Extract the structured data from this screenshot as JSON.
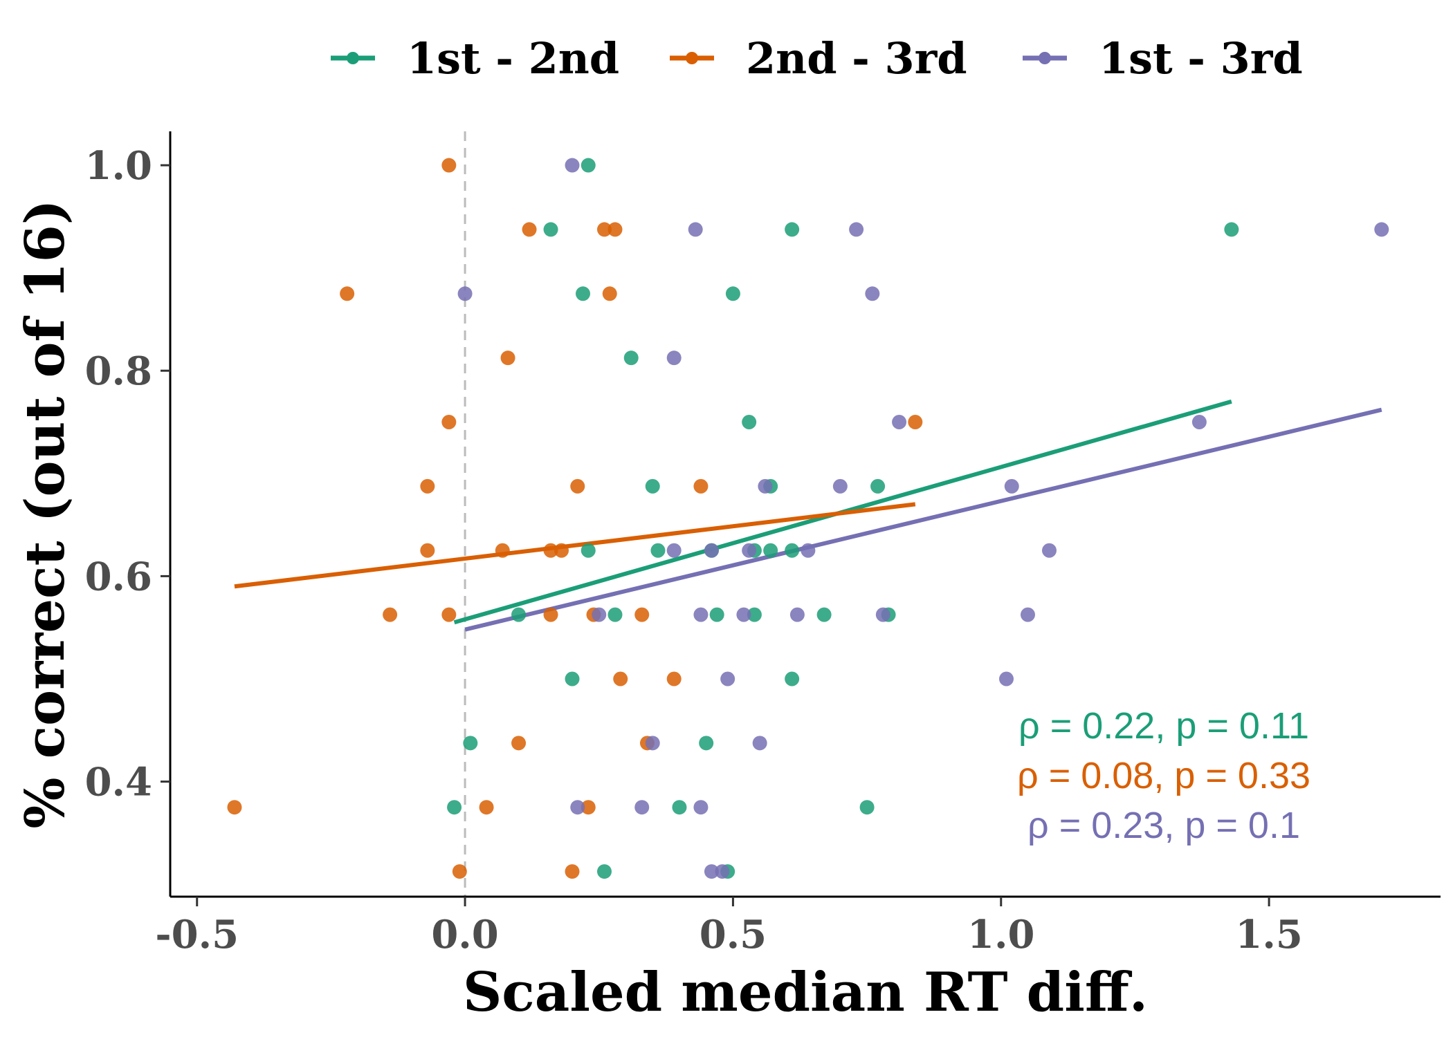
{
  "chart_data": {
    "type": "scatter",
    "xlabel": "Scaled median RT diff.",
    "ylabel": "% correct (out of 16)",
    "xlim": [
      -0.55,
      1.82
    ],
    "ylim": [
      0.288,
      1.033
    ],
    "x_ticks": [
      -0.5,
      0.0,
      0.5,
      1.0,
      1.5
    ],
    "x_tick_labels": [
      "-0.5",
      "0.0",
      "0.5",
      "1.0",
      "1.5"
    ],
    "y_ticks": [
      0.4,
      0.6,
      0.8,
      1.0
    ],
    "y_tick_labels": [
      "0.4",
      "0.6",
      "0.8",
      "1.0"
    ],
    "reference_line": {
      "x": 0,
      "style": "dashed",
      "color": "#bbbbbb"
    },
    "grid": false,
    "legend_position": "top",
    "series": [
      {
        "name": "1st - 2nd",
        "color": "#1b9e77",
        "points": [
          [
            0.23,
            1.0
          ],
          [
            0.16,
            0.9375
          ],
          [
            0.61,
            0.9375
          ],
          [
            1.43,
            0.9375
          ],
          [
            0.22,
            0.875
          ],
          [
            0.5,
            0.875
          ],
          [
            0.31,
            0.8125
          ],
          [
            0.53,
            0.75
          ],
          [
            0.35,
            0.6875
          ],
          [
            0.57,
            0.6875
          ],
          [
            0.77,
            0.6875
          ],
          [
            0.23,
            0.625
          ],
          [
            0.36,
            0.625
          ],
          [
            0.46,
            0.625
          ],
          [
            0.54,
            0.625
          ],
          [
            0.57,
            0.625
          ],
          [
            0.61,
            0.625
          ],
          [
            0.1,
            0.5625
          ],
          [
            0.28,
            0.5625
          ],
          [
            0.47,
            0.5625
          ],
          [
            0.54,
            0.5625
          ],
          [
            0.67,
            0.5625
          ],
          [
            0.79,
            0.5625
          ],
          [
            0.2,
            0.5
          ],
          [
            0.61,
            0.5
          ],
          [
            0.01,
            0.4375
          ],
          [
            0.45,
            0.4375
          ],
          [
            -0.02,
            0.375
          ],
          [
            0.4,
            0.375
          ],
          [
            0.75,
            0.375
          ],
          [
            0.26,
            0.3125
          ],
          [
            0.49,
            0.3125
          ]
        ],
        "fit": {
          "x": [
            -0.02,
            1.43
          ],
          "y": [
            0.555,
            0.77
          ]
        },
        "stat": "ρ = 0.22, p = 0.11"
      },
      {
        "name": "2nd - 3rd",
        "color": "#d95f02",
        "points": [
          [
            -0.03,
            1.0
          ],
          [
            0.12,
            0.9375
          ],
          [
            0.26,
            0.9375
          ],
          [
            0.28,
            0.9375
          ],
          [
            -0.22,
            0.875
          ],
          [
            0.27,
            0.875
          ],
          [
            0.08,
            0.8125
          ],
          [
            -0.03,
            0.75
          ],
          [
            0.84,
            0.75
          ],
          [
            -0.07,
            0.6875
          ],
          [
            0.21,
            0.6875
          ],
          [
            0.44,
            0.6875
          ],
          [
            -0.07,
            0.625
          ],
          [
            0.07,
            0.625
          ],
          [
            0.16,
            0.625
          ],
          [
            0.18,
            0.625
          ],
          [
            -0.14,
            0.5625
          ],
          [
            -0.03,
            0.5625
          ],
          [
            0.16,
            0.5625
          ],
          [
            0.24,
            0.5625
          ],
          [
            0.33,
            0.5625
          ],
          [
            0.29,
            0.5
          ],
          [
            0.39,
            0.5
          ],
          [
            0.1,
            0.4375
          ],
          [
            0.34,
            0.4375
          ],
          [
            -0.43,
            0.375
          ],
          [
            0.04,
            0.375
          ],
          [
            0.23,
            0.375
          ],
          [
            -0.01,
            0.3125
          ],
          [
            0.2,
            0.3125
          ]
        ],
        "fit": {
          "x": [
            -0.43,
            0.84
          ],
          "y": [
            0.59,
            0.67
          ]
        },
        "stat": "ρ = 0.08, p = 0.33"
      },
      {
        "name": "1st - 3rd",
        "color": "#7570b3",
        "points": [
          [
            0.2,
            1.0
          ],
          [
            0.43,
            0.9375
          ],
          [
            0.73,
            0.9375
          ],
          [
            1.71,
            0.9375
          ],
          [
            0.0,
            0.875
          ],
          [
            0.76,
            0.875
          ],
          [
            0.39,
            0.8125
          ],
          [
            0.81,
            0.75
          ],
          [
            1.37,
            0.75
          ],
          [
            0.56,
            0.6875
          ],
          [
            0.7,
            0.6875
          ],
          [
            1.02,
            0.6875
          ],
          [
            0.39,
            0.625
          ],
          [
            0.46,
            0.625
          ],
          [
            0.53,
            0.625
          ],
          [
            0.64,
            0.625
          ],
          [
            1.09,
            0.625
          ],
          [
            0.25,
            0.5625
          ],
          [
            0.44,
            0.5625
          ],
          [
            0.52,
            0.5625
          ],
          [
            0.62,
            0.5625
          ],
          [
            0.78,
            0.5625
          ],
          [
            1.05,
            0.5625
          ],
          [
            0.49,
            0.5
          ],
          [
            1.01,
            0.5
          ],
          [
            0.35,
            0.4375
          ],
          [
            0.55,
            0.4375
          ],
          [
            0.21,
            0.375
          ],
          [
            0.33,
            0.375
          ],
          [
            0.44,
            0.375
          ],
          [
            0.46,
            0.3125
          ],
          [
            0.48,
            0.3125
          ]
        ],
        "fit": {
          "x": [
            0.0,
            1.71
          ],
          "y": [
            0.548,
            0.762
          ]
        },
        "stat": "ρ = 0.23, p = 0.1"
      }
    ]
  }
}
